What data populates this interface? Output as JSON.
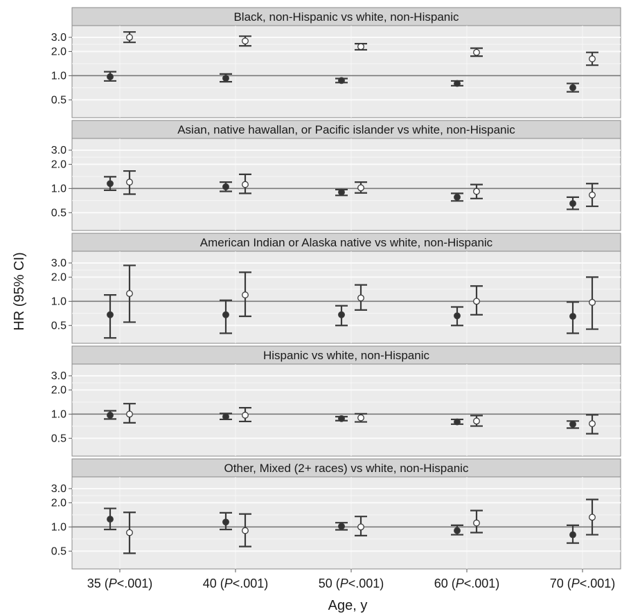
{
  "chart_data": {
    "type": "scatter",
    "subtype": "faceted point-range (hazard ratios with 95% CI error bars)",
    "ylabel": "HR (95% CI)",
    "xlabel": "Age, y",
    "y_scale": "log",
    "y_ticks": [
      "0.5",
      "1.0",
      "2.0",
      "3.0"
    ],
    "y_tick_values": [
      0.5,
      1.0,
      2.0,
      3.0
    ],
    "ylim": [
      0.3,
      4.2
    ],
    "reference_line": 1.0,
    "grid": true,
    "categories": [
      {
        "age": "35",
        "p_italic": "P",
        "p_rest": "<.001"
      },
      {
        "age": "40",
        "p_italic": "P",
        "p_rest": "<.001"
      },
      {
        "age": "50",
        "p_italic": "P",
        "p_rest": "<.001"
      },
      {
        "age": "60",
        "p_italic": "P",
        "p_rest": "<.001"
      },
      {
        "age": "70",
        "p_italic": "P",
        "p_rest": "<.001"
      }
    ],
    "series_styles": [
      {
        "marker": "filled",
        "color": "#333333"
      },
      {
        "marker": "open",
        "color": "#ffffff"
      }
    ],
    "panels": [
      {
        "title": "Black, non-Hispanic vs white, non-Hispanic",
        "series": [
          {
            "marker": "filled",
            "points": [
              [
                0.97,
                0.86,
                1.12
              ],
              [
                0.93,
                0.84,
                1.05
              ],
              [
                0.87,
                0.82,
                0.92
              ],
              [
                0.8,
                0.75,
                0.86
              ],
              [
                0.71,
                0.63,
                0.8
              ]
            ]
          },
          {
            "marker": "open",
            "points": [
              [
                3.0,
                2.6,
                3.5
              ],
              [
                2.7,
                2.35,
                3.1
              ],
              [
                2.3,
                2.1,
                2.5
              ],
              [
                1.95,
                1.75,
                2.2
              ],
              [
                1.62,
                1.35,
                1.95
              ]
            ]
          }
        ]
      },
      {
        "title": "Asian, native hawallan, or Pacific islander vs white, non-Hispanic",
        "series": [
          {
            "marker": "filled",
            "points": [
              [
                1.15,
                0.95,
                1.4
              ],
              [
                1.05,
                0.92,
                1.2
              ],
              [
                0.9,
                0.82,
                0.97
              ],
              [
                0.78,
                0.7,
                0.87
              ],
              [
                0.65,
                0.55,
                0.78
              ]
            ]
          },
          {
            "marker": "open",
            "points": [
              [
                1.2,
                0.85,
                1.65
              ],
              [
                1.12,
                0.87,
                1.5
              ],
              [
                1.02,
                0.88,
                1.2
              ],
              [
                0.92,
                0.75,
                1.12
              ],
              [
                0.83,
                0.6,
                1.15
              ]
            ]
          }
        ]
      },
      {
        "title": "American Indian or Alaska native vs white, non-Hispanic",
        "series": [
          {
            "marker": "filled",
            "points": [
              [
                0.68,
                0.35,
                1.2
              ],
              [
                0.68,
                0.4,
                1.03
              ],
              [
                0.68,
                0.5,
                0.88
              ],
              [
                0.66,
                0.5,
                0.85
              ],
              [
                0.65,
                0.4,
                0.98
              ]
            ]
          },
          {
            "marker": "open",
            "points": [
              [
                1.25,
                0.55,
                2.8
              ],
              [
                1.2,
                0.65,
                2.3
              ],
              [
                1.1,
                0.78,
                1.6
              ],
              [
                1.0,
                0.68,
                1.55
              ],
              [
                0.97,
                0.45,
                2.0
              ]
            ]
          }
        ]
      },
      {
        "title": "Hispanic vs white, non-Hispanic",
        "series": [
          {
            "marker": "filled",
            "points": [
              [
                0.97,
                0.87,
                1.1
              ],
              [
                0.93,
                0.86,
                1.02
              ],
              [
                0.88,
                0.83,
                0.93
              ],
              [
                0.8,
                0.75,
                0.86
              ],
              [
                0.75,
                0.67,
                0.82
              ]
            ]
          },
          {
            "marker": "open",
            "points": [
              [
                1.0,
                0.78,
                1.35
              ],
              [
                0.97,
                0.81,
                1.2
              ],
              [
                0.9,
                0.8,
                1.01
              ],
              [
                0.82,
                0.71,
                0.96
              ],
              [
                0.76,
                0.57,
                0.98
              ]
            ]
          }
        ]
      },
      {
        "title": "Other, Mixed (2+ races) vs white, non-Hispanic",
        "series": [
          {
            "marker": "filled",
            "points": [
              [
                1.25,
                0.93,
                1.7
              ],
              [
                1.15,
                0.93,
                1.5
              ],
              [
                1.02,
                0.92,
                1.13
              ],
              [
                0.9,
                0.8,
                1.05
              ],
              [
                0.8,
                0.63,
                1.05
              ]
            ]
          },
          {
            "marker": "open",
            "points": [
              [
                0.85,
                0.47,
                1.52
              ],
              [
                0.9,
                0.57,
                1.45
              ],
              [
                1.0,
                0.78,
                1.35
              ],
              [
                1.12,
                0.85,
                1.6
              ],
              [
                1.32,
                0.8,
                2.2
              ]
            ]
          }
        ]
      }
    ]
  }
}
